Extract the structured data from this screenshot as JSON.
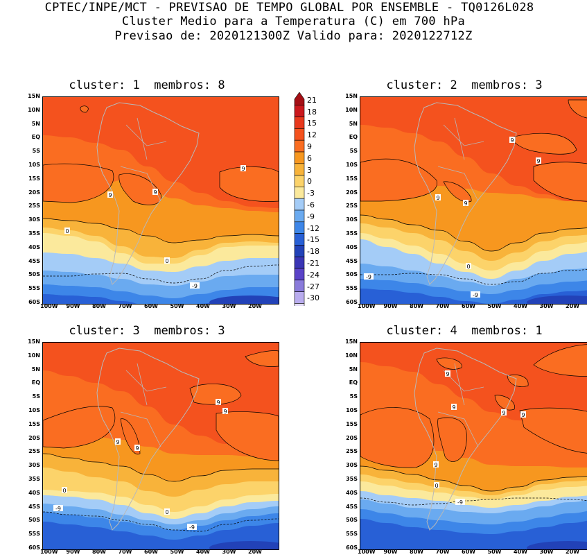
{
  "header": {
    "line1": "CPTEC/INPE/MCT - PREVISAO DE TEMPO GLOBAL POR ENSEMBLE - TQ0126L028",
    "line2": "Cluster Medio para a Temperatura (C) em 700 hPa",
    "line3": "Previsao de: 2020121300Z   Valido para: 2020122712Z"
  },
  "panels": [
    {
      "title": "cluster: 1  membros: 8"
    },
    {
      "title": "cluster: 2  membros: 3"
    },
    {
      "title": "cluster: 3  membros: 3"
    },
    {
      "title": "cluster: 4  membros: 1"
    }
  ],
  "lat_labels": [
    "15N",
    "10N",
    "5N",
    "EQ",
    "5S",
    "10S",
    "15S",
    "20S",
    "25S",
    "30S",
    "35S",
    "40S",
    "45S",
    "50S",
    "55S",
    "60S"
  ],
  "lon_labels": [
    "100W",
    "90W",
    "80W",
    "70W",
    "60W",
    "50W",
    "40W",
    "30W",
    "20W"
  ],
  "contour_labels": {
    "p1": [
      "9",
      "9",
      "9",
      "0",
      "0",
      "-9"
    ],
    "p2": [
      "9",
      "9",
      "9",
      "9",
      "0",
      "-9",
      "-9"
    ],
    "p3": [
      "9",
      "9",
      "9",
      "9",
      "0",
      "0",
      "-9",
      "-9"
    ],
    "p4": [
      "9",
      "9",
      "9",
      "9",
      "9",
      "0",
      "-9"
    ]
  },
  "colorbar": {
    "levels": [
      "21",
      "18",
      "15",
      "12",
      "9",
      "6",
      "3",
      "0",
      "-3",
      "-6",
      "-9",
      "-12",
      "-15",
      "-18",
      "-21",
      "-24",
      "-27",
      "-30"
    ],
    "colors": [
      "#a50f15",
      "#cb181d",
      "#e8391d",
      "#f4521e",
      "#fa6d21",
      "#f7971f",
      "#f8b33a",
      "#fcd36a",
      "#fbe99c",
      "#a4ccf7",
      "#6aaaf0",
      "#3d86e8",
      "#2860d6",
      "#2242b8",
      "#3a35b5",
      "#5a43c8",
      "#8a7bdb",
      "#b9acee",
      "#e4ddf8"
    ]
  }
}
